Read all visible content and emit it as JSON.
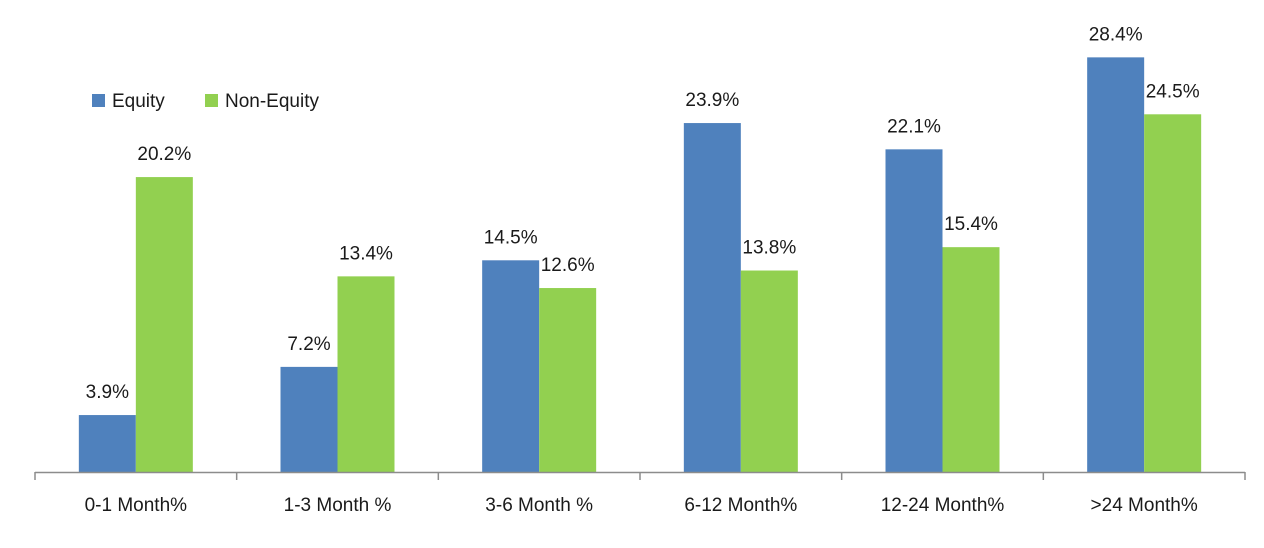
{
  "chart_data": {
    "type": "bar",
    "title": "",
    "xlabel": "",
    "ylabel": "",
    "ylim": [
      0,
      30
    ],
    "grid": false,
    "legend": "top-left",
    "categories": [
      "0-1 Month%",
      "1-3 Month %",
      "3-6 Month %",
      "6-12 Month%",
      "12-24 Month%",
      ">24 Month%"
    ],
    "series": [
      {
        "name": "Equity",
        "color": "#4f81bd",
        "values": [
          3.9,
          7.2,
          14.5,
          23.9,
          22.1,
          28.4
        ],
        "labels": [
          "3.9%",
          "7.2%",
          "14.5%",
          "23.9%",
          "22.1%",
          "28.4%"
        ]
      },
      {
        "name": "Non-Equity",
        "color": "#92d050",
        "values": [
          20.2,
          13.4,
          12.6,
          13.8,
          15.4,
          24.5
        ],
        "labels": [
          "20.2%",
          "13.4%",
          "12.6%",
          "13.8%",
          "15.4%",
          "24.5%"
        ]
      }
    ]
  }
}
